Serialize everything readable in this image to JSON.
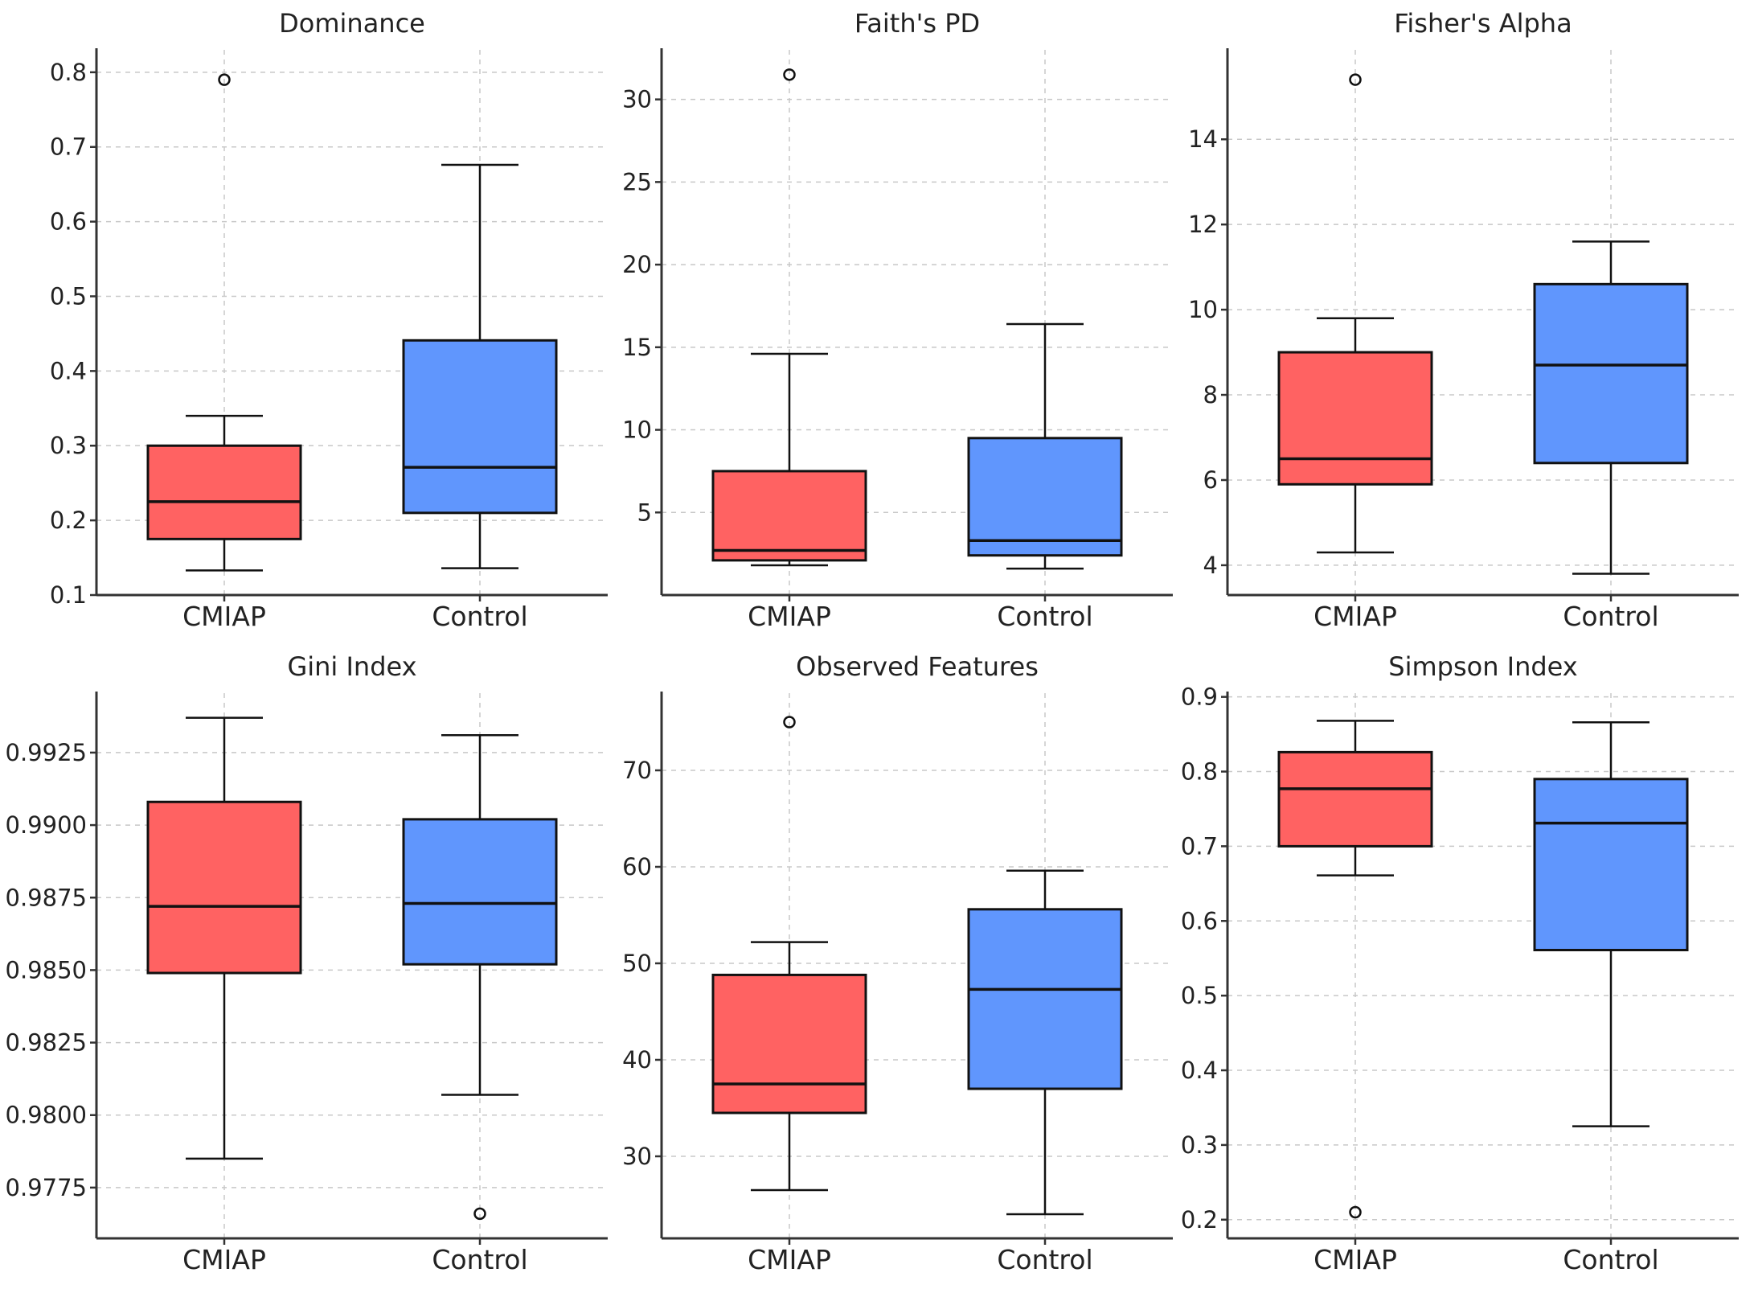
{
  "colors": {
    "CMIAP": "#ff6262",
    "Control": "#6096fd"
  },
  "chart_data": [
    {
      "type": "box",
      "title": "Dominance",
      "categories": [
        "CMIAP",
        "Control"
      ],
      "ylim": [
        0.1,
        0.83
      ],
      "yticks": [
        0.1,
        0.2,
        0.3,
        0.4,
        0.5,
        0.6,
        0.7,
        0.8
      ],
      "ytick_labels": [
        "0.1",
        "0.2",
        "0.3",
        "0.4",
        "0.5",
        "0.6",
        "0.7",
        "0.8"
      ],
      "series": [
        {
          "name": "CMIAP",
          "whislo": 0.133,
          "q1": 0.175,
          "med": 0.225,
          "q3": 0.3,
          "whishi": 0.34,
          "fliers": [
            0.79
          ]
        },
        {
          "name": "Control",
          "whislo": 0.136,
          "q1": 0.21,
          "med": 0.271,
          "q3": 0.441,
          "whishi": 0.676,
          "fliers": []
        }
      ]
    },
    {
      "type": "box",
      "title": "Faith's PD",
      "categories": [
        "CMIAP",
        "Control"
      ],
      "ylim": [
        0.0,
        33.0
      ],
      "yticks": [
        5,
        10,
        15,
        20,
        25,
        30
      ],
      "ytick_labels": [
        "5",
        "10",
        "15",
        "20",
        "25",
        "30"
      ],
      "series": [
        {
          "name": "CMIAP",
          "whislo": 1.8,
          "q1": 2.1,
          "med": 2.7,
          "q3": 7.5,
          "whishi": 14.6,
          "fliers": [
            31.5
          ]
        },
        {
          "name": "Control",
          "whislo": 1.6,
          "q1": 2.4,
          "med": 3.3,
          "q3": 9.5,
          "whishi": 16.4,
          "fliers": []
        }
      ]
    },
    {
      "type": "box",
      "title": "Fisher's Alpha",
      "categories": [
        "CMIAP",
        "Control"
      ],
      "ylim": [
        3.3,
        16.1
      ],
      "yticks": [
        4,
        6,
        8,
        10,
        12,
        14
      ],
      "ytick_labels": [
        "4",
        "6",
        "8",
        "10",
        "12",
        "14"
      ],
      "series": [
        {
          "name": "CMIAP",
          "whislo": 4.3,
          "q1": 5.9,
          "med": 6.5,
          "q3": 9.0,
          "whishi": 9.8,
          "fliers": [
            15.4
          ]
        },
        {
          "name": "Control",
          "whislo": 3.8,
          "q1": 6.4,
          "med": 8.7,
          "q3": 10.6,
          "whishi": 11.6,
          "fliers": []
        }
      ]
    },
    {
      "type": "box",
      "title": "Gini Index",
      "categories": [
        "CMIAP",
        "Control"
      ],
      "ylim": [
        0.97575,
        0.99455
      ],
      "yticks": [
        0.9775,
        0.98,
        0.9825,
        0.985,
        0.9875,
        0.99,
        0.9925
      ],
      "ytick_labels": [
        "0.9775",
        "0.9800",
        "0.9825",
        "0.9850",
        "0.9875",
        "0.9900",
        "0.9925"
      ],
      "series": [
        {
          "name": "CMIAP",
          "whislo": 0.9785,
          "q1": 0.9849,
          "med": 0.9872,
          "q3": 0.9908,
          "whishi": 0.9937,
          "fliers": []
        },
        {
          "name": "Control",
          "whislo": 0.9807,
          "q1": 0.9852,
          "med": 0.9873,
          "q3": 0.9902,
          "whishi": 0.9931,
          "fliers": [
            0.9766
          ]
        }
      ]
    },
    {
      "type": "box",
      "title": "Observed Features",
      "categories": [
        "CMIAP",
        "Control"
      ],
      "ylim": [
        21.5,
        78.0
      ],
      "yticks": [
        30,
        40,
        50,
        60,
        70
      ],
      "ytick_labels": [
        "30",
        "40",
        "50",
        "60",
        "70"
      ],
      "series": [
        {
          "name": "CMIAP",
          "whislo": 26.5,
          "q1": 34.5,
          "med": 37.5,
          "q3": 48.8,
          "whishi": 52.2,
          "fliers": [
            75.0
          ]
        },
        {
          "name": "Control",
          "whislo": 24.0,
          "q1": 37.0,
          "med": 47.3,
          "q3": 55.6,
          "whishi": 59.6,
          "fliers": []
        }
      ]
    },
    {
      "type": "box",
      "title": "Simpson Index",
      "categories": [
        "CMIAP",
        "Control"
      ],
      "ylim": [
        0.175,
        0.905
      ],
      "yticks": [
        0.2,
        0.3,
        0.4,
        0.5,
        0.6,
        0.7,
        0.8,
        0.9
      ],
      "ytick_labels": [
        "0.2",
        "0.3",
        "0.4",
        "0.5",
        "0.6",
        "0.7",
        "0.8",
        "0.9"
      ],
      "series": [
        {
          "name": "CMIAP",
          "whislo": 0.661,
          "q1": 0.7,
          "med": 0.777,
          "q3": 0.826,
          "whishi": 0.868,
          "fliers": [
            0.21
          ]
        },
        {
          "name": "Control",
          "whislo": 0.325,
          "q1": 0.561,
          "med": 0.731,
          "q3": 0.79,
          "whishi": 0.866,
          "fliers": []
        }
      ]
    }
  ]
}
